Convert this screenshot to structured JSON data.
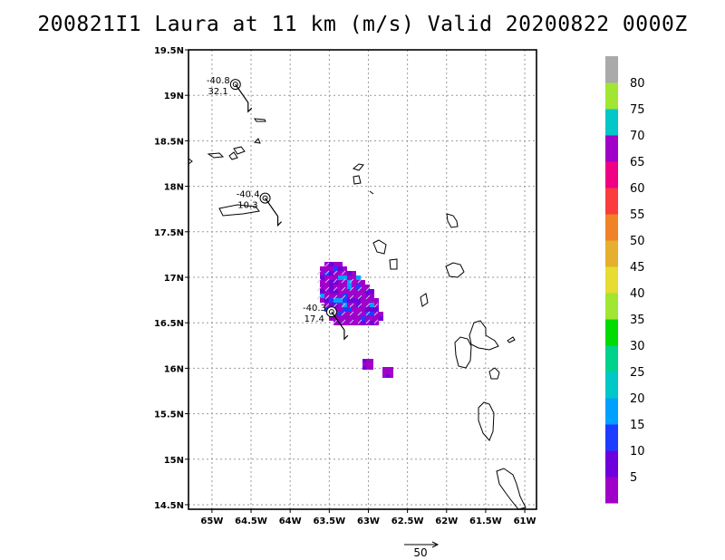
{
  "title": "200821I1 Laura at 11 km (m/s) Valid 20200822 0000Z",
  "map": {
    "lat_ticks": [
      "19.5N",
      "19N",
      "18.5N",
      "18N",
      "17.5N",
      "17N",
      "16.5N",
      "16N",
      "15.5N",
      "15N",
      "14.5N"
    ],
    "lon_ticks": [
      "65W",
      "64.5W",
      "64W",
      "63.5W",
      "63W",
      "62.5W",
      "62W",
      "61.5W",
      "61W"
    ],
    "lat_range": [
      14.45,
      19.5
    ],
    "lon_range": [
      -65.3,
      -60.85
    ],
    "grid": "dotted"
  },
  "stations": [
    {
      "lon": -64.7,
      "lat": 19.12,
      "label_top": "-40.8",
      "label_bottom": "32.1"
    },
    {
      "lon": -64.32,
      "lat": 17.87,
      "label_top": "-40.4",
      "label_bottom": "10.3"
    },
    {
      "lon": -63.47,
      "lat": 16.62,
      "label_top": "-40.3",
      "label_bottom": "17.4"
    }
  ],
  "colorbar": {
    "labels": [
      "5",
      "10",
      "15",
      "20",
      "25",
      "30",
      "35",
      "40",
      "45",
      "50",
      "55",
      "60",
      "65",
      "70",
      "75",
      "80"
    ],
    "colors": [
      "#a000c8",
      "#6e00dc",
      "#1e3cff",
      "#00a0ff",
      "#00c8c8",
      "#00d28c",
      "#00dc00",
      "#a0e632",
      "#e6dc32",
      "#e6af2d",
      "#f08228",
      "#fa3c3c",
      "#f00082",
      "#a000c8",
      "#00c8c8",
      "#a0e632",
      "#aaaaaa"
    ]
  },
  "vector_key": {
    "value": "50"
  }
}
